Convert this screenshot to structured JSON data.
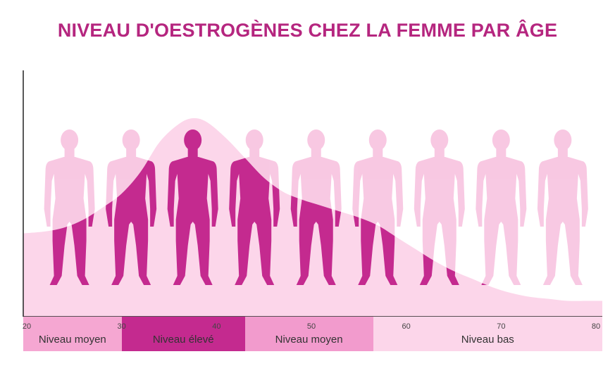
{
  "title": "NIVEAU D'OESTROGÈNES CHEZ LA FEMME PAR ÂGE",
  "colors": {
    "title": "#b5267f",
    "silhouette_light": "#f8c6e1",
    "silhouette_dark": "#c42a8f",
    "curve_fill": "#fcd6ea",
    "axis": "#222222",
    "band_moyen_1": "#f5a7d2",
    "band_eleve": "#c42a8f",
    "band_moyen_2": "#f29bcd",
    "band_bas": "#fcd6ea"
  },
  "chart_data": {
    "type": "area",
    "title": "NIVEAU D'OESTROGÈNES CHEZ LA FEMME PAR ÂGE",
    "xlabel": "",
    "ylabel": "",
    "xlim": [
      20,
      80
    ],
    "x_ticks": [
      20,
      30,
      40,
      50,
      60,
      70,
      80
    ],
    "x_tick_labels": [
      "20",
      "30",
      "40",
      "50",
      "60",
      "70",
      "80"
    ],
    "series": [
      {
        "x": [
          20,
          22,
          24,
          26,
          28,
          30,
          32,
          34,
          36,
          37.5,
          39,
          41,
          43,
          45,
          47,
          49,
          51,
          53,
          55,
          57,
          59,
          61,
          63,
          65,
          67,
          69,
          71,
          73,
          75,
          77,
          79,
          80
        ],
        "values": [
          0.42,
          0.43,
          0.45,
          0.49,
          0.55,
          0.62,
          0.73,
          0.88,
          0.97,
          1.0,
          0.98,
          0.9,
          0.8,
          0.7,
          0.63,
          0.59,
          0.56,
          0.53,
          0.5,
          0.46,
          0.4,
          0.34,
          0.28,
          0.23,
          0.19,
          0.15,
          0.12,
          0.1,
          0.09,
          0.08,
          0.08,
          0.08
        ]
      }
    ],
    "ylim": [
      0,
      1.0
    ],
    "figures": {
      "ages": [
        24.5,
        31,
        37.5,
        44,
        50.5,
        57,
        63.5,
        70,
        76.5
      ],
      "fill_level": [
        0.42,
        0.66,
        1.0,
        0.9,
        0.61,
        0.52,
        0.32,
        0.13,
        0.07
      ]
    },
    "bands": [
      {
        "label": "Niveau moyen",
        "from": 20,
        "to": 30,
        "color_key": "band_moyen_1"
      },
      {
        "label": "Niveau élevé",
        "from": 30,
        "to": 43,
        "color_key": "band_eleve"
      },
      {
        "label": "Niveau moyen",
        "from": 43,
        "to": 56.5,
        "color_key": "band_moyen_2"
      },
      {
        "label": "Niveau bas",
        "from": 56.5,
        "to": 80,
        "color_key": "band_bas"
      }
    ],
    "grid": false,
    "legend": "none"
  }
}
